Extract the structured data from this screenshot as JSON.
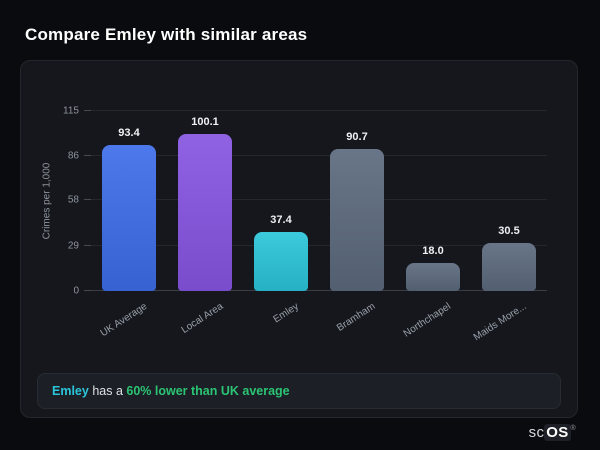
{
  "page": {
    "title": "Compare Emley with similar areas"
  },
  "chart_data": {
    "type": "bar",
    "title": "Compare Emley with similar areas",
    "categories": [
      "UK Average",
      "Local Area",
      "Emley",
      "Bramham",
      "Northchapel",
      "Maids More..."
    ],
    "values": [
      93.4,
      100.1,
      37.4,
      90.7,
      18.0,
      30.5
    ],
    "bar_colors": [
      "#3d6de9",
      "#8655e2",
      "#2bc5da",
      "#5c6a7e",
      "#5c6a7e",
      "#5c6a7e"
    ],
    "xlabel": "",
    "ylabel": "Crimes per 1,000",
    "ylim": [
      0,
      115
    ],
    "yticks": [
      0,
      29,
      58,
      86,
      115
    ],
    "grid": true,
    "legend": false,
    "value_labels": true
  },
  "note": {
    "area": "Emley",
    "middle": " has a ",
    "highlight": "60% lower than UK average"
  },
  "branding": {
    "prefix": "sc",
    "suffix": "OS",
    "registered": "®"
  },
  "colors": {
    "background": "#0a0b0e",
    "card": "#15171c",
    "accent_cyan": "#2bc5da",
    "accent_green": "#2bc474",
    "note_background": "#1c1f25"
  }
}
